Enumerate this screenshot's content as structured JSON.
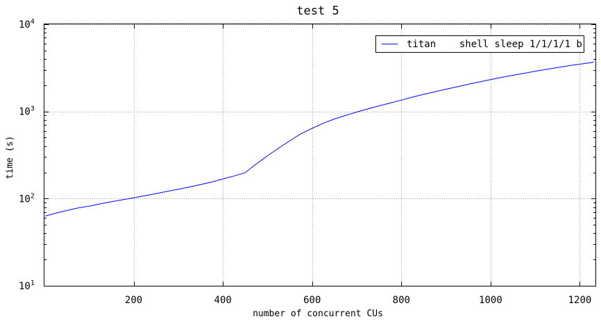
{
  "chart_data": {
    "type": "line",
    "title": "test 5",
    "xlabel": "number of concurrent CUs",
    "ylabel": "time (s)",
    "xlim": [
      0,
      1235
    ],
    "ylim": [
      10,
      10000
    ],
    "yscale": "log",
    "grid": true,
    "legend_position": "top-right",
    "x_ticks": [
      200,
      400,
      600,
      800,
      1000,
      1200
    ],
    "x_tick_labels": [
      "200",
      "400",
      "600",
      "800",
      "1000",
      "1200"
    ],
    "y_ticks": [
      10,
      100,
      1000,
      10000
    ],
    "y_tick_bases": [
      "10",
      "10",
      "10",
      "10"
    ],
    "y_tick_exponents": [
      "1",
      "2",
      "3",
      "4"
    ],
    "series": [
      {
        "name": "titan    shell sleep 1/1/1/1 b",
        "color": "#0000ff",
        "x": [
          2,
          25,
          50,
          75,
          100,
          125,
          150,
          175,
          200,
          225,
          250,
          275,
          300,
          325,
          350,
          375,
          400,
          425,
          450,
          470,
          500,
          525,
          550,
          575,
          600,
          625,
          650,
          675,
          700,
          725,
          750,
          775,
          800,
          825,
          850,
          875,
          900,
          925,
          950,
          975,
          1000,
          1025,
          1050,
          1075,
          1100,
          1125,
          1150,
          1175,
          1200,
          1225,
          1232
        ],
        "y": [
          63,
          68,
          73,
          78,
          82,
          87,
          92,
          97,
          102,
          108,
          114,
          121,
          128,
          136,
          145,
          155,
          168,
          182,
          198,
          240,
          310,
          380,
          460,
          555,
          640,
          730,
          820,
          900,
          985,
          1070,
          1160,
          1250,
          1350,
          1460,
          1570,
          1680,
          1800,
          1920,
          2050,
          2180,
          2320,
          2460,
          2600,
          2740,
          2890,
          3040,
          3190,
          3340,
          3490,
          3640,
          3700
        ]
      }
    ]
  }
}
